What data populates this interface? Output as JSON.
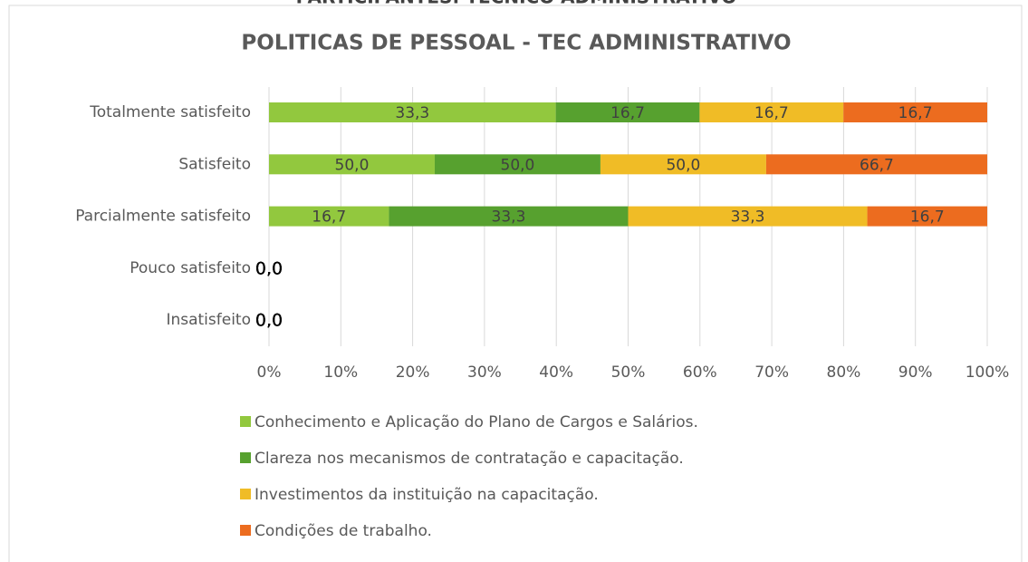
{
  "chart_data": {
    "type": "bar",
    "orientation": "horizontal",
    "stack": "percent",
    "header": "PARTICIPANTES: TÉCNICO ADMINISTRATIVO",
    "title": "POLITICAS DE PESSOAL - TEC ADMINISTRATIVO",
    "categories": [
      "Totalmente satisfeito",
      "Satisfeito",
      "Parcialmente satisfeito",
      "Pouco satisfeito",
      "Insatisfeito"
    ],
    "series": [
      {
        "name": "Conhecimento e Aplicação do Plano de Cargos e Salários.",
        "color": "#92c83e",
        "values": [
          33.3,
          50.0,
          16.7,
          0,
          0
        ],
        "value_labels": [
          "33,3",
          "50,0",
          "16,7",
          "0,0",
          "0,0"
        ]
      },
      {
        "name": "Clareza nos mecanismos de contratação e capacitação.",
        "color": "#57a12f",
        "values": [
          16.7,
          50.0,
          33.3,
          0,
          0
        ],
        "value_labels": [
          "16,7",
          "50,0",
          "33,3",
          "0,0",
          "0,0"
        ]
      },
      {
        "name": "Investimentos da instituição na capacitação.",
        "color": "#f0bc26",
        "values": [
          16.7,
          50.0,
          33.3,
          0,
          0
        ],
        "value_labels": [
          "16,7",
          "50,0",
          "33,3",
          "0,0",
          "0,0"
        ]
      },
      {
        "name": "Condições de trabalho.",
        "color": "#ec6c1f",
        "values": [
          16.7,
          66.7,
          16.7,
          0,
          0
        ],
        "value_labels": [
          "16,7",
          "66,7",
          "16,7",
          "0,0",
          "0,0"
        ]
      }
    ],
    "xlim": [
      0,
      100
    ],
    "xticks": [
      {
        "value": 0,
        "label": "0%"
      },
      {
        "value": 10,
        "label": "10%"
      },
      {
        "value": 20,
        "label": "20%"
      },
      {
        "value": 30,
        "label": "30%"
      },
      {
        "value": 40,
        "label": "40%"
      },
      {
        "value": 50,
        "label": "50%"
      },
      {
        "value": 60,
        "label": "60%"
      },
      {
        "value": 70,
        "label": "70%"
      },
      {
        "value": 80,
        "label": "80%"
      },
      {
        "value": 90,
        "label": "90%"
      },
      {
        "value": 100,
        "label": "100%"
      }
    ],
    "grid": true,
    "legend": "bottom"
  }
}
